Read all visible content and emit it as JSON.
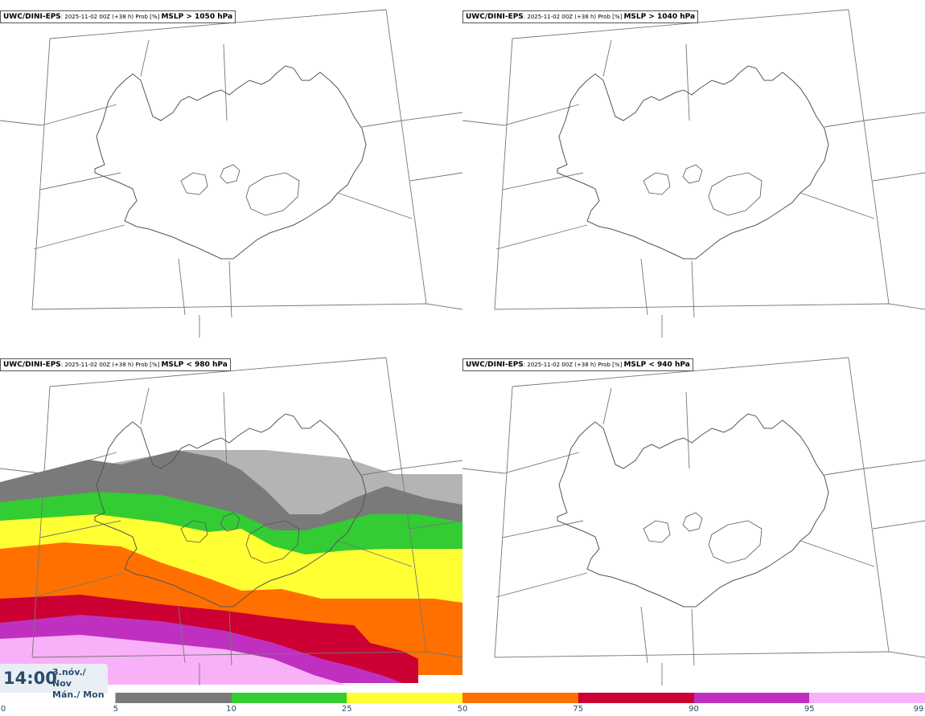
{
  "panels": [
    {
      "model": "UWC/DINI-EPS",
      "meta": ": 2025-11-02 00Z (+38 h) Prob [%] ",
      "param": "MSLP > 1050 hPa"
    },
    {
      "model": "UWC/DINI-EPS",
      "meta": ": 2025-11-02 00Z (+38 h) Prob [%] ",
      "param": "MSLP > 1040 hPa"
    },
    {
      "model": "UWC/DINI-EPS",
      "meta": ": 2025-11-02 00Z (+38 h) Prob [%] ",
      "param": "MSLP < 980 hPa"
    },
    {
      "model": "UWC/DINI-EPS",
      "meta": ": 2025-11-02 00Z (+38 h) Prob [%] ",
      "param": "MSLP < 940 hPa"
    }
  ],
  "time_box": {
    "time": "14:00",
    "date_line1": "3.nóv./ Nov",
    "date_line2": "Mán./ Mon"
  },
  "colorbar": {
    "labels": [
      "0",
      "5",
      "10",
      "25",
      "50",
      "75",
      "90",
      "95",
      "99"
    ],
    "colors": [
      "#ffffff",
      "#b4b4b4",
      "#7a7a7a",
      "#33cc33",
      "#ffff33",
      "#ff7000",
      "#cc0033",
      "#c030c0",
      "#f8b0f8"
    ]
  },
  "colors": {
    "coastline": "#555555",
    "grid": "#777777",
    "title_border": "#555555"
  },
  "icons": [
    "iceland-coastline",
    "lat-lon-grid"
  ]
}
